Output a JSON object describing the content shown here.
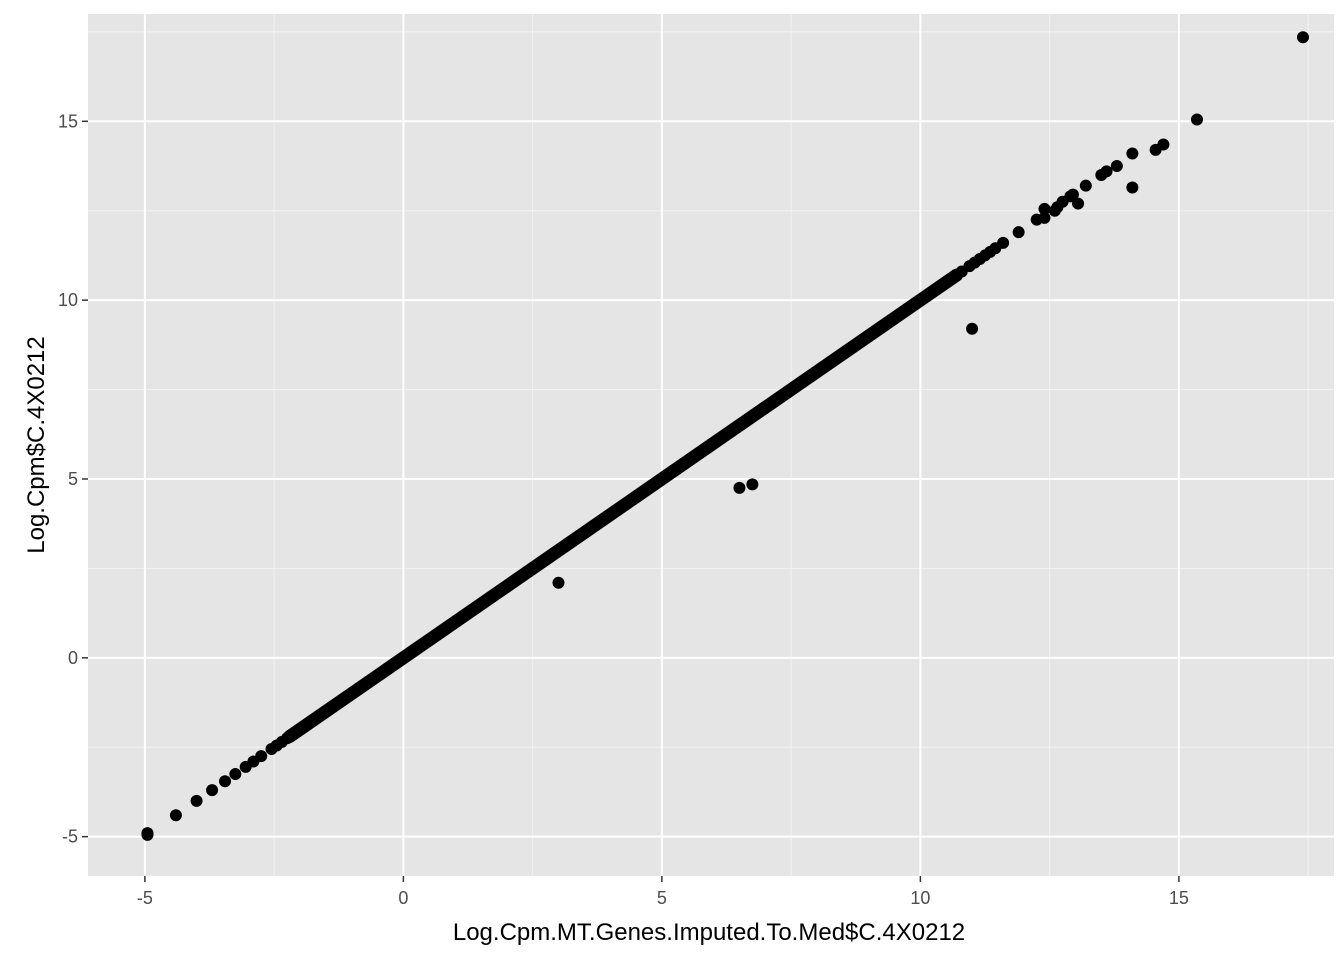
{
  "chart_data": {
    "type": "scatter",
    "title": "",
    "xlabel": "Log.Cpm.MT.Genes.Imputed.To.Med$C.4X0212",
    "ylabel": "Log.Cpm$C.4X0212",
    "xlim": [
      -6.1,
      18.0
    ],
    "ylim": [
      -6.1,
      18.0
    ],
    "x_ticks": [
      -5,
      0,
      5,
      10,
      15
    ],
    "y_ticks": [
      -5,
      0,
      5,
      10,
      15
    ],
    "x_tick_labels": [
      "-5",
      "0",
      "5",
      "10",
      "15"
    ],
    "y_tick_labels": [
      "-5",
      "0",
      "5",
      "10",
      "15"
    ],
    "grid": true,
    "legend": "none",
    "colors": {
      "panel_background": "#e5e5e5",
      "grid_major": "#ffffff",
      "grid_minor": "#f2f2f2",
      "point": "#000000",
      "tick_text": "#4d4d4d",
      "title_text": "#000000"
    },
    "series": [
      {
        "kind": "diagonal_band",
        "description_values": "dense run of points along y = x",
        "x_range": [
          -4.95,
          11.6
        ],
        "points": [
          [
            -4.95,
            -4.95
          ],
          [
            -4.95,
            -4.9
          ],
          [
            -4.4,
            -4.4
          ],
          [
            -4.0,
            -4.0
          ],
          [
            -3.7,
            -3.7
          ],
          [
            -3.45,
            -3.45
          ],
          [
            -3.25,
            -3.25
          ],
          [
            -3.05,
            -3.05
          ],
          [
            -2.9,
            -2.9
          ],
          [
            -2.75,
            -2.75
          ],
          [
            -2.55,
            -2.55
          ],
          [
            -2.45,
            -2.45
          ],
          [
            -2.35,
            -2.35
          ],
          [
            -2.25,
            -2.25
          ],
          [
            10.8,
            10.8
          ],
          [
            10.95,
            10.95
          ],
          [
            11.05,
            11.05
          ],
          [
            11.15,
            11.15
          ],
          [
            11.25,
            11.25
          ],
          [
            11.35,
            11.35
          ],
          [
            11.45,
            11.45
          ],
          [
            11.6,
            11.6
          ]
        ]
      },
      {
        "kind": "points",
        "points": [
          [
            3.0,
            2.1
          ],
          [
            6.5,
            4.75
          ],
          [
            6.75,
            4.85
          ],
          [
            11.0,
            9.2
          ],
          [
            11.9,
            11.9
          ],
          [
            12.25,
            12.25
          ],
          [
            12.4,
            12.3
          ],
          [
            12.4,
            12.55
          ],
          [
            12.6,
            12.5
          ],
          [
            12.65,
            12.6
          ],
          [
            12.75,
            12.75
          ],
          [
            12.9,
            12.9
          ],
          [
            12.95,
            12.95
          ],
          [
            13.05,
            12.7
          ],
          [
            13.2,
            13.2
          ],
          [
            13.5,
            13.5
          ],
          [
            13.6,
            13.6
          ],
          [
            13.8,
            13.75
          ],
          [
            14.1,
            14.1
          ],
          [
            14.1,
            13.15
          ],
          [
            14.55,
            14.2
          ],
          [
            14.7,
            14.35
          ],
          [
            15.35,
            15.05
          ],
          [
            17.4,
            17.35
          ]
        ]
      }
    ]
  }
}
